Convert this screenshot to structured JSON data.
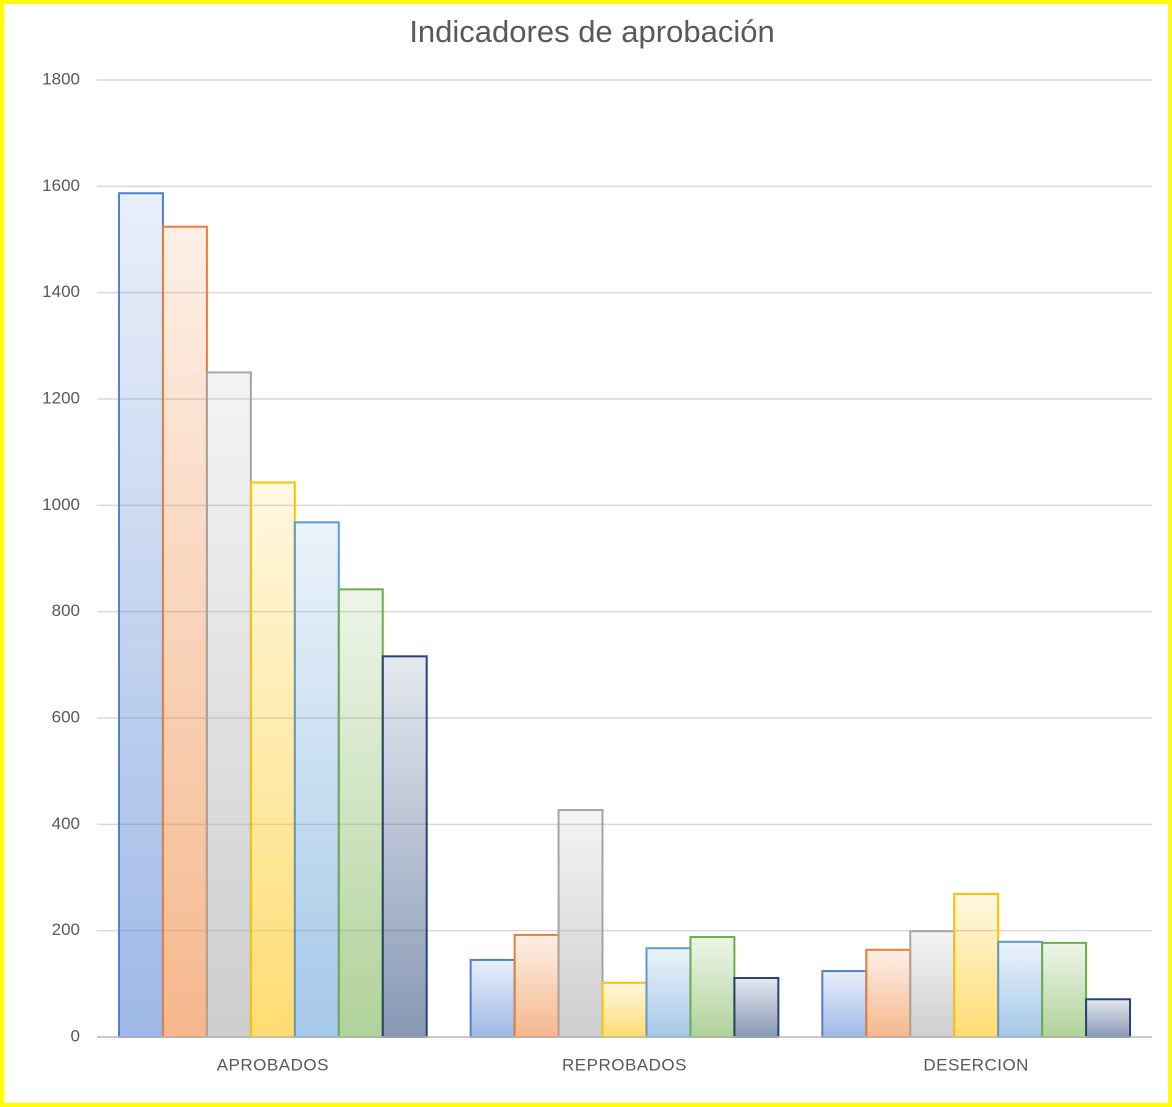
{
  "chart_data": {
    "type": "bar",
    "title": "Indicadores de aprobación",
    "categories": [
      "APROBADOS",
      "REPROBADOS",
      "DESERCION"
    ],
    "series": [
      {
        "color": "#4f7fd1",
        "values": [
          1587,
          145,
          124
        ]
      },
      {
        "color": "#ed7d31",
        "values": [
          1524,
          192,
          164
        ]
      },
      {
        "color": "#a5a5a5",
        "values": [
          1250,
          427,
          199
        ]
      },
      {
        "color": "#ffc000",
        "values": [
          1043,
          102,
          269
        ]
      },
      {
        "color": "#5b9bd5",
        "values": [
          968,
          167,
          179
        ]
      },
      {
        "color": "#70ad47",
        "values": [
          842,
          188,
          177
        ]
      },
      {
        "color": "#264478",
        "values": [
          716,
          111,
          71
        ]
      }
    ],
    "ylim": [
      0,
      1800
    ],
    "yticks": [
      0,
      200,
      400,
      600,
      800,
      1000,
      1200,
      1400,
      1600,
      1800
    ],
    "grid": true
  }
}
